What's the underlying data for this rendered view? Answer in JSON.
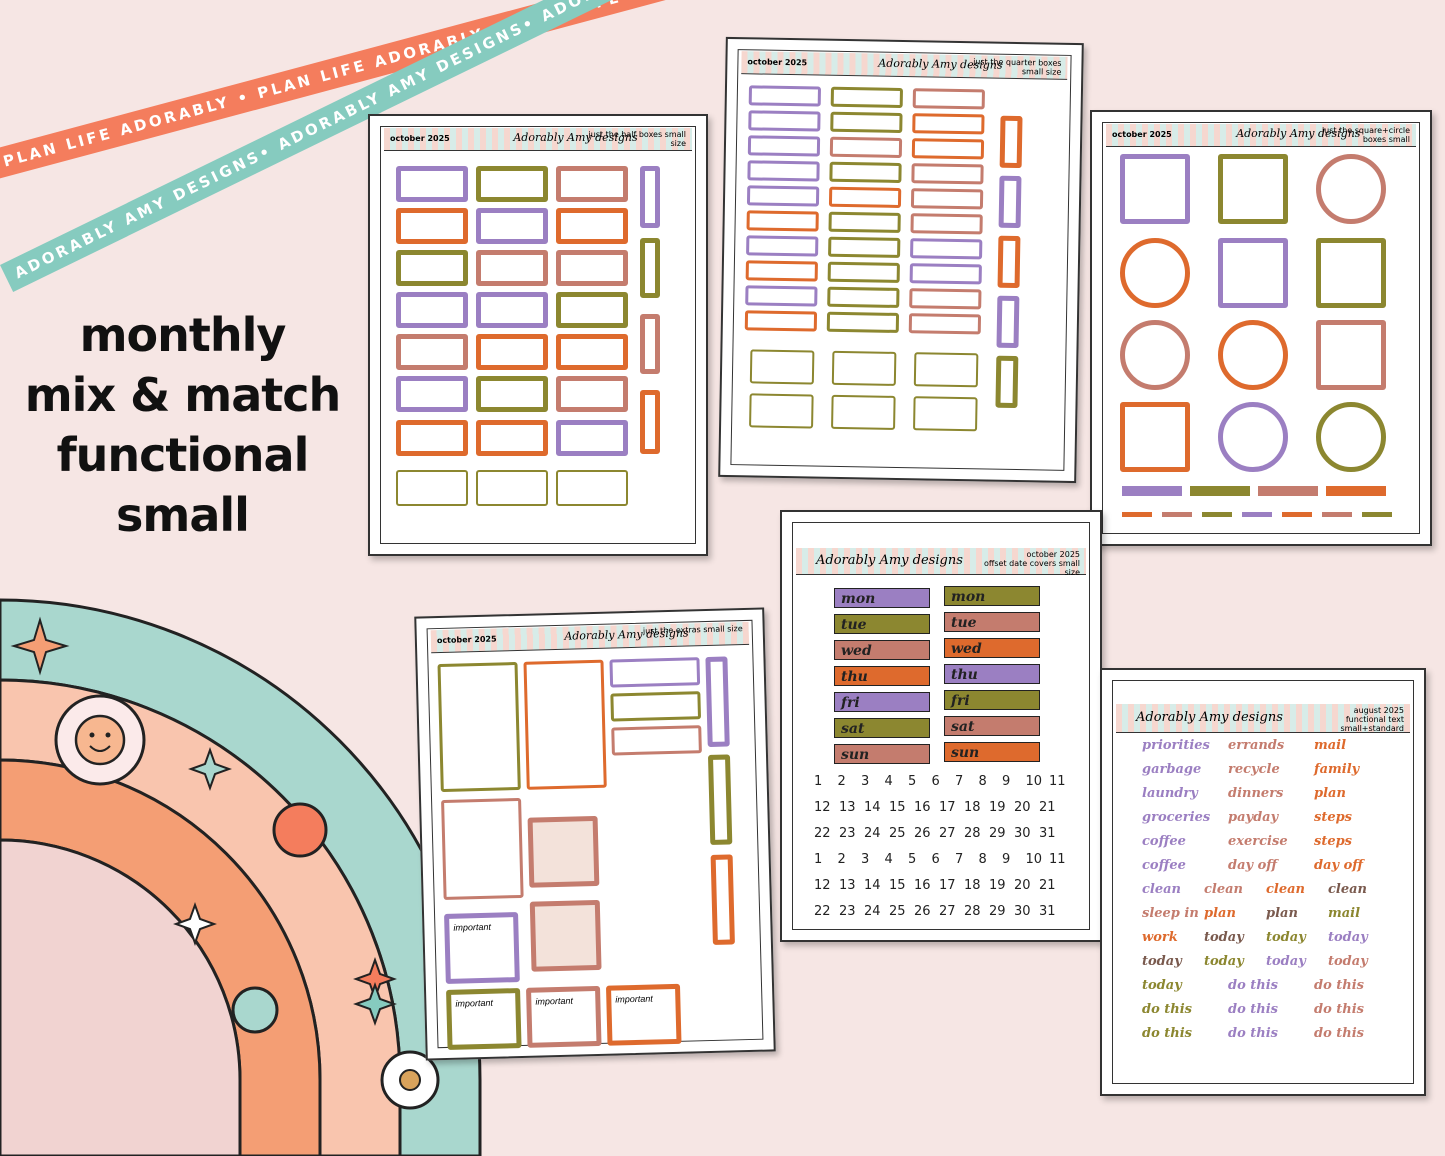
{
  "ribbons": {
    "top": "PLAN LIFE ADORABLY • PLAN LIFE ADORABLY • PLAN LIFE ADORABLY",
    "bottom": "ADORABLY AMY DESIGNS• ADORABLY AMY DESIGNS• ADORABLY AMY DESIGNS•"
  },
  "headline": [
    "monthly",
    "mix & match",
    "functional",
    "small"
  ],
  "brand_logo": "Adorably Amy designs",
  "colors": {
    "purple": "#9b7fc2",
    "orange": "#de6a2d",
    "olive": "#8c8730",
    "rose": "#c47c6e",
    "teal": "#86cbbf",
    "coral": "#f47d5d",
    "background": "#f6e6e4"
  },
  "sheets": {
    "half": {
      "month": "october 2025",
      "title": "just the half boxes small size"
    },
    "quarter": {
      "month": "october 2025",
      "title": "just the quarter boxes small size"
    },
    "square": {
      "month": "october 2025",
      "title": "just the square+circle boxes small"
    },
    "extras": {
      "month": "october 2025",
      "title": "just the extras small size"
    },
    "date": {
      "month": "october 2025",
      "title": "offset date covers small size"
    },
    "text": {
      "month": "august 2025",
      "title": "functional text small+standard"
    }
  },
  "days": [
    "mon",
    "tue",
    "wed",
    "thu",
    "fri",
    "sat",
    "sun"
  ],
  "numbers_row_a": [
    "1",
    "2",
    "3",
    "4",
    "5",
    "6",
    "7",
    "8",
    "9",
    "10",
    "11"
  ],
  "numbers_row_b": [
    "12",
    "13",
    "14",
    "15",
    "16",
    "17",
    "18",
    "19",
    "20",
    "21"
  ],
  "numbers_row_c": [
    "22",
    "23",
    "24",
    "25",
    "26",
    "27",
    "28",
    "29",
    "30",
    "31"
  ],
  "functional_words": [
    "priorities",
    "errands",
    "mail",
    "garbage",
    "recycle",
    "family",
    "laundry",
    "dinners",
    "plan",
    "groceries",
    "payday",
    "steps",
    "coffee",
    "exercise",
    "steps",
    "coffee",
    "day off",
    "day off",
    "clean",
    "clean",
    "clean",
    "clean",
    "sleep in",
    "plan",
    "plan",
    "mail",
    "work",
    "today",
    "today",
    "today",
    "today",
    "today",
    "today",
    "today",
    "today",
    "do this",
    "do this",
    "do this",
    "do this",
    "do this",
    "do this",
    "do this",
    "do this"
  ],
  "extras_labels": {
    "important": "important"
  }
}
